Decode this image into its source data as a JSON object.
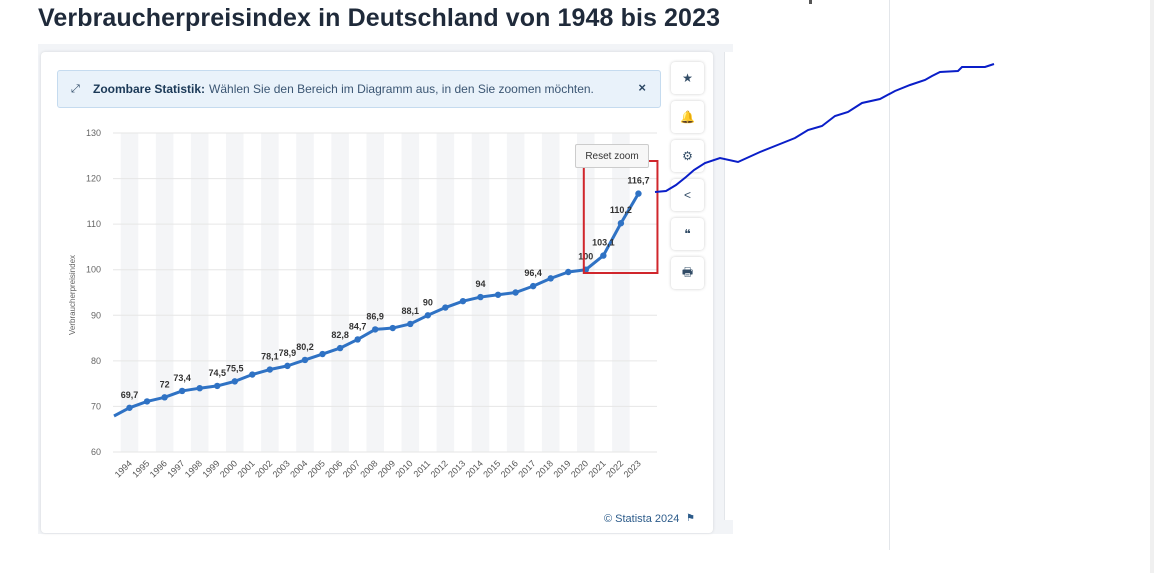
{
  "title": "Verbraucherpreisindex in Deutschland von 1948 bis 2023",
  "banner": {
    "strong": "Zoombare Statistik:",
    "text": "Wählen Sie den Bereich im Diagramm aus, in den Sie zoomen möchten.",
    "close_glyph": "×",
    "expand_glyph": "⤢"
  },
  "reset_zoom_label": "Reset zoom",
  "toolbar": [
    {
      "name": "star-icon",
      "glyph": "★"
    },
    {
      "name": "bell-icon",
      "glyph": "🔔"
    },
    {
      "name": "gear-icon",
      "glyph": "⚙"
    },
    {
      "name": "share-icon",
      "glyph": "<"
    },
    {
      "name": "quote-icon",
      "glyph": "❝"
    },
    {
      "name": "print-icon",
      "glyph": "🖶"
    }
  ],
  "credit": "© Statista 2024",
  "flag_glyph": "⚑",
  "colors": {
    "line": "#2f72c4",
    "annotation_line": "#0a1ec8",
    "highlight_box": "#d0262c",
    "band": "#f4f5f7",
    "grid": "#e6e6e6"
  },
  "chart_data": {
    "type": "line",
    "title": "",
    "xlabel": "",
    "ylabel": "Verbraucherpreisindex",
    "ylim": [
      60,
      130
    ],
    "yticks": [
      60,
      70,
      80,
      90,
      100,
      110,
      120,
      130
    ],
    "grid": true,
    "legend": "none",
    "x": [
      "1994",
      "1995",
      "1996",
      "1997",
      "1998",
      "1999",
      "2000",
      "2001",
      "2002",
      "2003",
      "2004",
      "2005",
      "2006",
      "2007",
      "2008",
      "2009",
      "2010",
      "2011",
      "2012",
      "2013",
      "2014",
      "2015",
      "2016",
      "2017",
      "2018",
      "2019",
      "2020",
      "2021",
      "2022",
      "2023"
    ],
    "series": [
      {
        "values": [
          69.7,
          71.1,
          72.0,
          73.4,
          74.0,
          74.5,
          75.5,
          77.0,
          78.1,
          78.9,
          80.2,
          81.5,
          82.8,
          84.7,
          86.9,
          87.2,
          88.1,
          90.0,
          91.7,
          93.1,
          94.0,
          94.5,
          95.0,
          96.4,
          98.1,
          99.5,
          100.0,
          103.1,
          110.2,
          116.7
        ],
        "start_value": 67.9,
        "point_labels": [
          {
            "x": "1994",
            "label": "69,7"
          },
          {
            "x": "1996",
            "label": "72"
          },
          {
            "x": "1997",
            "label": "73,4"
          },
          {
            "x": "1999",
            "label": "74,5"
          },
          {
            "x": "2000",
            "label": "75,5"
          },
          {
            "x": "2002",
            "label": "78,1"
          },
          {
            "x": "2003",
            "label": "78,9"
          },
          {
            "x": "2004",
            "label": "80,2"
          },
          {
            "x": "2006",
            "label": "82,8"
          },
          {
            "x": "2007",
            "label": "84,7"
          },
          {
            "x": "2008",
            "label": "86,9"
          },
          {
            "x": "2010",
            "label": "88,1"
          },
          {
            "x": "2011",
            "label": "90"
          },
          {
            "x": "2014",
            "label": "94"
          },
          {
            "x": "2017",
            "label": "96,4"
          },
          {
            "x": "2020",
            "label": "100"
          },
          {
            "x": "2021",
            "label": "103,1"
          },
          {
            "x": "2022",
            "label": "110,2"
          },
          {
            "x": "2023",
            "label": "116,7"
          }
        ]
      }
    ],
    "highlight_box": {
      "x_from": "2020",
      "x_to": "2023"
    }
  }
}
